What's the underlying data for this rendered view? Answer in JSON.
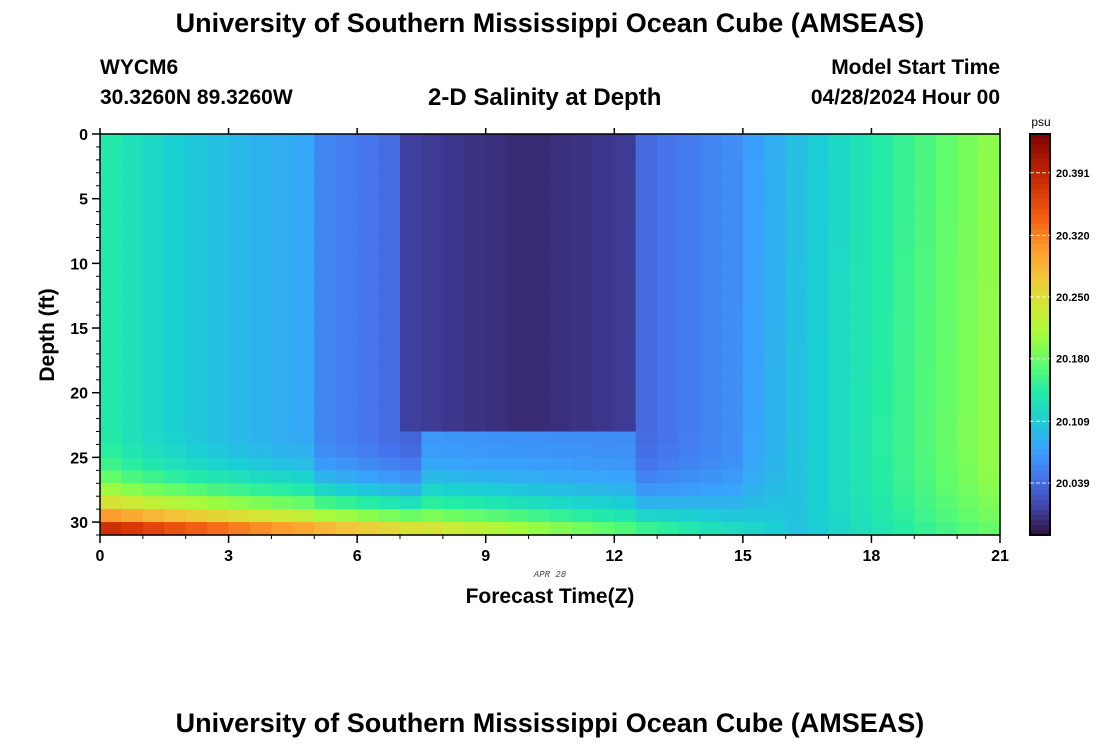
{
  "header": {
    "title": "University of Southern Mississippi Ocean Cube (AMSEAS)",
    "station": "WYCM6",
    "coords": "30.3260N  89.3260W",
    "subtitle": "2-D Salinity at Depth",
    "start_label": "Model Start Time",
    "start_value": "04/28/2024 Hour 00"
  },
  "footer": {
    "title": "University of Southern Mississippi Ocean Cube (AMSEAS)"
  },
  "chart_data": {
    "type": "heatmap",
    "title": "2-D Salinity at Depth",
    "xlabel": "Forecast Time(Z)",
    "ylabel": "Depth (ft)",
    "date_label": "APR 28",
    "xlim": [
      0,
      21
    ],
    "ylim": [
      0,
      31
    ],
    "xticks": [
      0,
      3,
      6,
      9,
      12,
      15,
      18,
      21
    ],
    "yticks": [
      0,
      5,
      10,
      15,
      20,
      25,
      30
    ],
    "colorbar": {
      "unit": "psu",
      "min": 19.98,
      "max": 20.435,
      "ticks": [
        20.039,
        20.109,
        20.18,
        20.25,
        20.32,
        20.391
      ],
      "tick_labels": [
        "20.039",
        "20.109",
        "20.180",
        "20.250",
        "20.320",
        "20.391"
      ],
      "colormap": [
        "#30123b",
        "#4145ab",
        "#4675ed",
        "#39a2fc",
        "#1bcfd4",
        "#24eca6",
        "#61fc6c",
        "#a4fc3b",
        "#d1e834",
        "#f3c63a",
        "#fe9b2d",
        "#f36315",
        "#d93806",
        "#b11901",
        "#7a0402"
      ]
    },
    "field_description": {
      "columns_time_hours": 42,
      "rows_depth_ft": 31
    }
  }
}
